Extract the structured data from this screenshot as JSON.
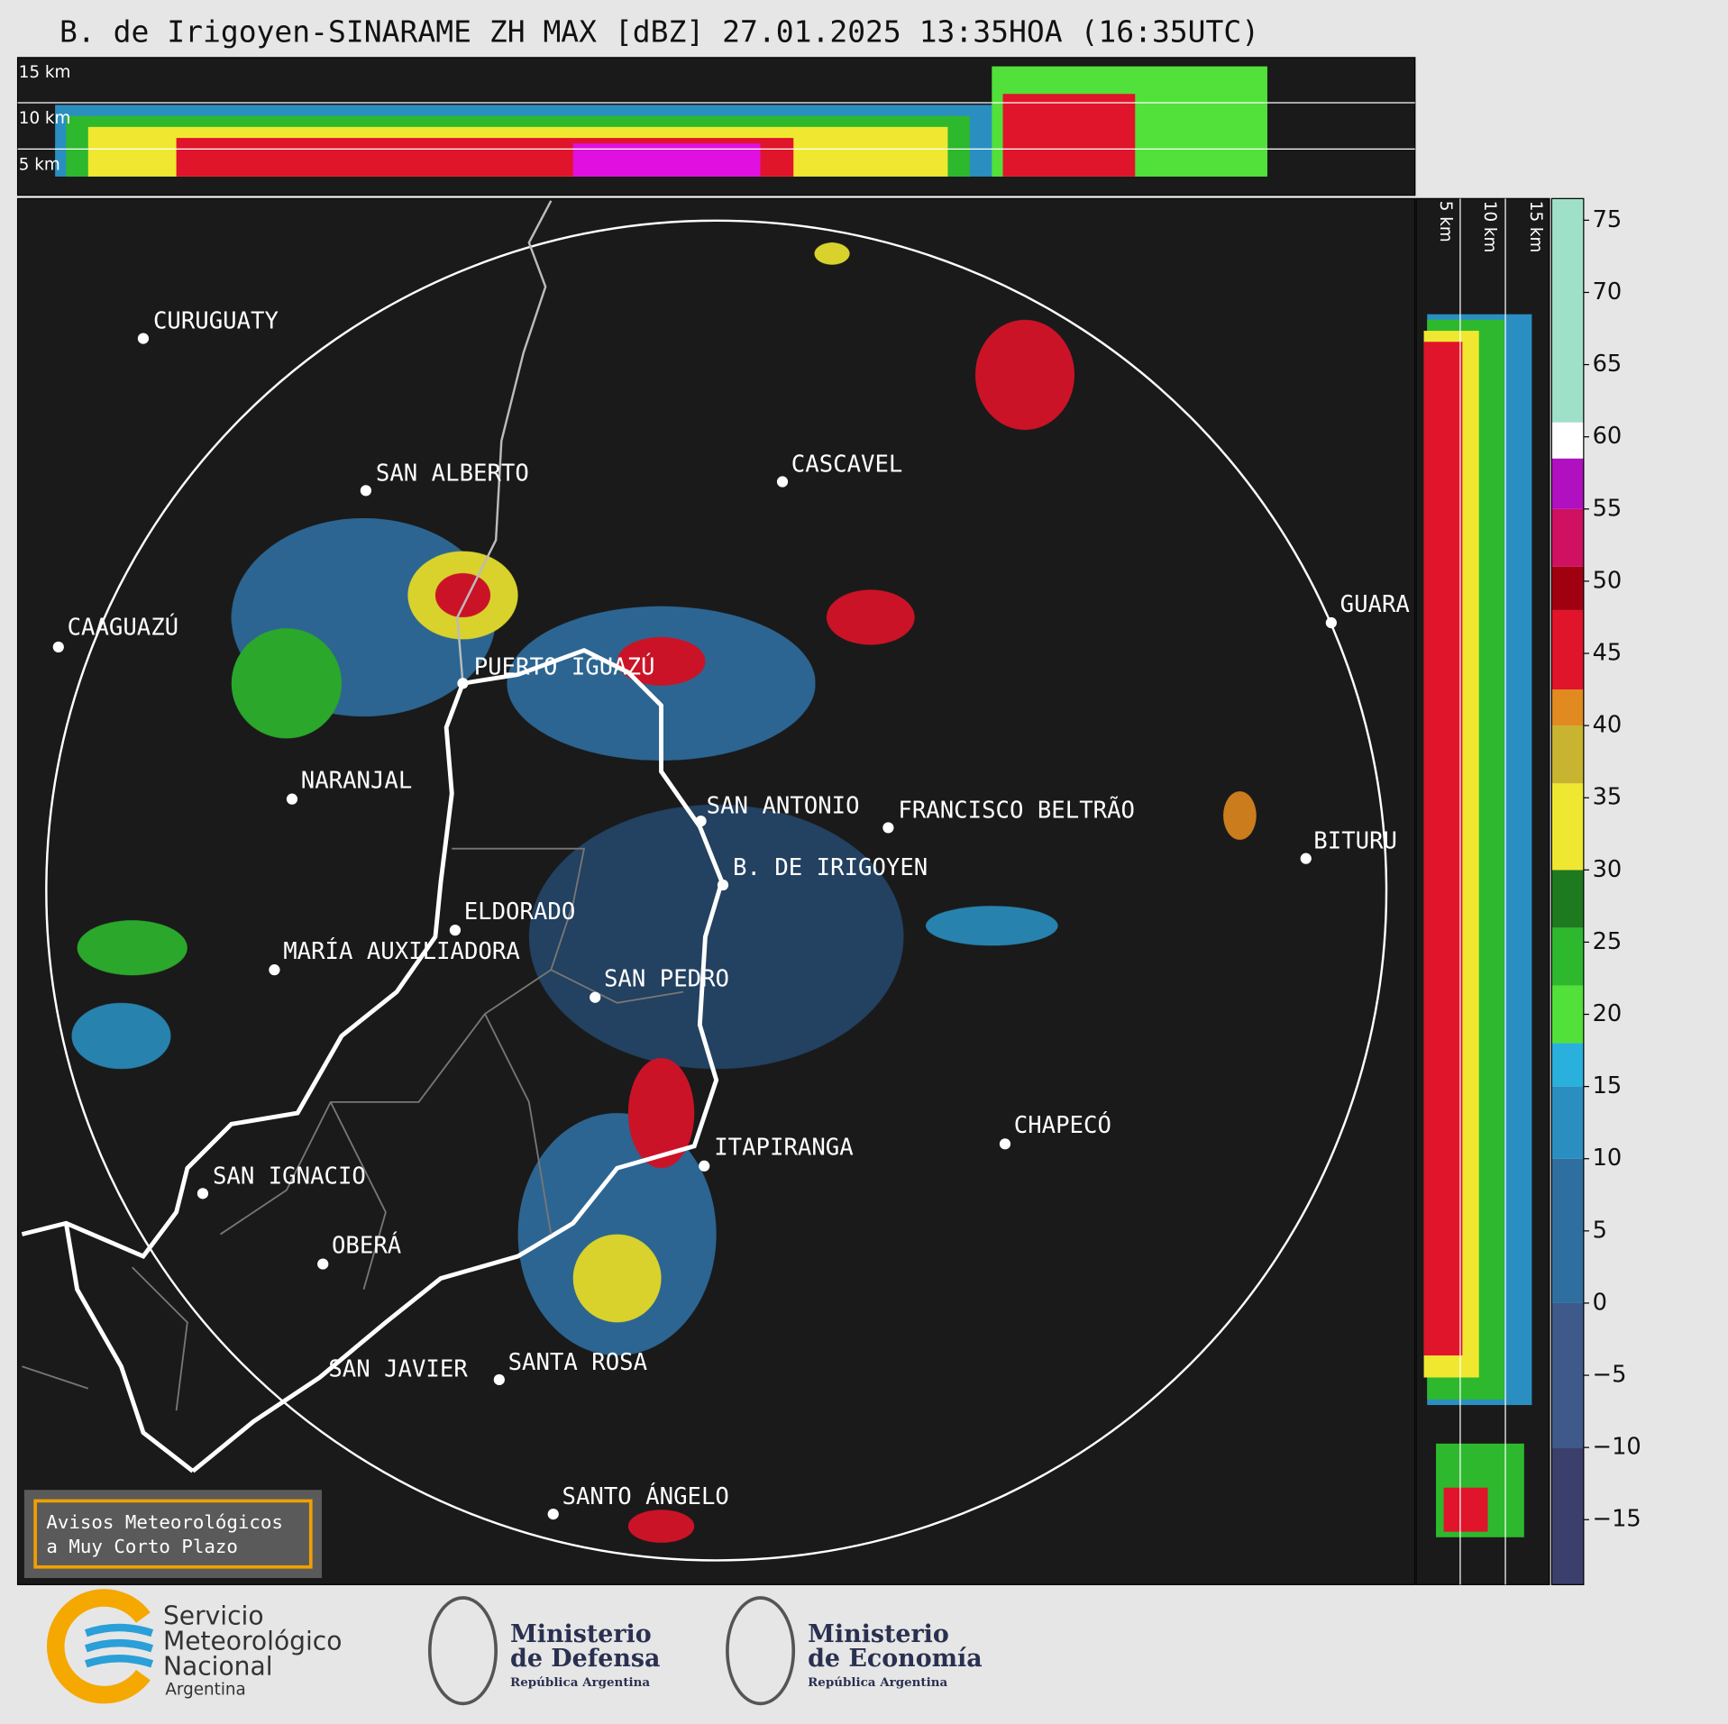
{
  "header": {
    "title": "B. de Irigoyen-SINARAME ZH MAX [dBZ] 27.01.2025 13:35HOA (16:35UTC)"
  },
  "top_section": {
    "height_labels": [
      "15 km",
      "10 km",
      "5 km"
    ]
  },
  "side_section": {
    "height_labels": [
      "5 km",
      "10 km",
      "15 km"
    ]
  },
  "map": {
    "cities": [
      "CURUGUATY",
      "SAN ALBERTO",
      "CASCAVEL",
      "CAAGUAZÚ",
      "GUARA",
      "PUERTO IGUAZÚ",
      "NARANJAL",
      "SAN ANTONIO",
      "FRANCISCO BELTRÃO",
      "B. DE IRIGOYEN",
      "BITURU",
      "ELDORADO",
      "MARÍA AUXILIADORA",
      "SAN PEDRO",
      "CHAPECÓ",
      "ITAPIRANGA",
      "SAN IGNACIO",
      "OBERÁ",
      "SAN JAVIER",
      "SANTA ROSA",
      "SANTO ÁNGELO"
    ]
  },
  "notice": {
    "lines": [
      "Avisos Meteorológicos",
      "a Muy Corto Plazo"
    ]
  },
  "colorbar": {
    "lim": [
      -19.5,
      76.5
    ],
    "ticks": [
      {
        "value": -15,
        "label": "−15"
      },
      {
        "value": -10,
        "label": "−10"
      },
      {
        "value": -5,
        "label": "−5"
      },
      0,
      5,
      10,
      15,
      20,
      25,
      30,
      35,
      40,
      45,
      50,
      55,
      60,
      65,
      70,
      75
    ],
    "segments": [
      {
        "from": -19.5,
        "to": -10,
        "color": "#3b3f6b"
      },
      {
        "from": -10,
        "to": 0,
        "color": "#3d5a8a"
      },
      {
        "from": 0,
        "to": 10,
        "color": "#2f6fa0"
      },
      {
        "from": 10,
        "to": 15,
        "color": "#2a8fc0"
      },
      {
        "from": 15,
        "to": 18,
        "color": "#2ab0dc"
      },
      {
        "from": 18,
        "to": 22,
        "color": "#52e03a"
      },
      {
        "from": 22,
        "to": 26,
        "color": "#2eb82e"
      },
      {
        "from": 26,
        "to": 30,
        "color": "#1e7a1e"
      },
      {
        "from": 30,
        "to": 36,
        "color": "#f0e830"
      },
      {
        "from": 36,
        "to": 40,
        "color": "#c8b430"
      },
      {
        "from": 40,
        "to": 42.5,
        "color": "#e08a20"
      },
      {
        "from": 42.5,
        "to": 48,
        "color": "#e0142a"
      },
      {
        "from": 48,
        "to": 51,
        "color": "#a00010"
      },
      {
        "from": 51,
        "to": 55,
        "color": "#d01060"
      },
      {
        "from": 55,
        "to": 58.5,
        "color": "#b010c0"
      },
      {
        "from": 58.5,
        "to": 61,
        "color": "#ffffff"
      },
      {
        "from": 61,
        "to": 76.5,
        "color": "#9fe0c8"
      }
    ]
  },
  "footer": {
    "smn": [
      "Servicio",
      "Meteorológico",
      "Nacional",
      "Argentina"
    ],
    "defensa": [
      "Ministerio",
      "de Defensa",
      "República Argentina"
    ],
    "economia": [
      "Ministerio",
      "de Economía",
      "República Argentina"
    ]
  }
}
